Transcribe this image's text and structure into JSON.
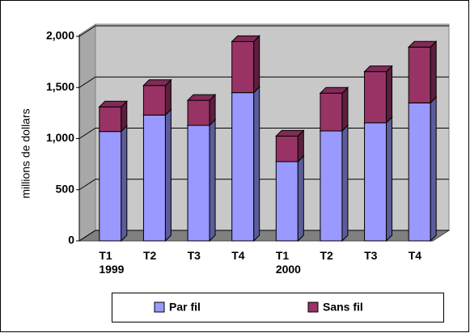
{
  "chart_data": {
    "type": "bar3d_stacked",
    "y_label": "millions de dollars",
    "categories": [
      "T1\n1999",
      "T2",
      "T3",
      "T4",
      "T1\n2000",
      "T2",
      "T3",
      "T4"
    ],
    "series": [
      {
        "name": "Par fil",
        "color": "#9999ff",
        "values": [
          1070,
          1230,
          1130,
          1450,
          775,
          1075,
          1155,
          1350
        ]
      },
      {
        "name": "Sans fil",
        "color": "#993366",
        "values": [
          240,
          290,
          245,
          500,
          250,
          370,
          500,
          545
        ]
      }
    ],
    "ylim": [
      0,
      2000
    ],
    "yticks": [
      0,
      {
        "value": 500,
        "label": "500"
      },
      {
        "value": 1000,
        "label": "1,000"
      },
      {
        "value": 1500,
        "label": "1,500"
      },
      {
        "value": 2000,
        "label": "2,000"
      }
    ],
    "grid": true,
    "legend": "bottom"
  }
}
